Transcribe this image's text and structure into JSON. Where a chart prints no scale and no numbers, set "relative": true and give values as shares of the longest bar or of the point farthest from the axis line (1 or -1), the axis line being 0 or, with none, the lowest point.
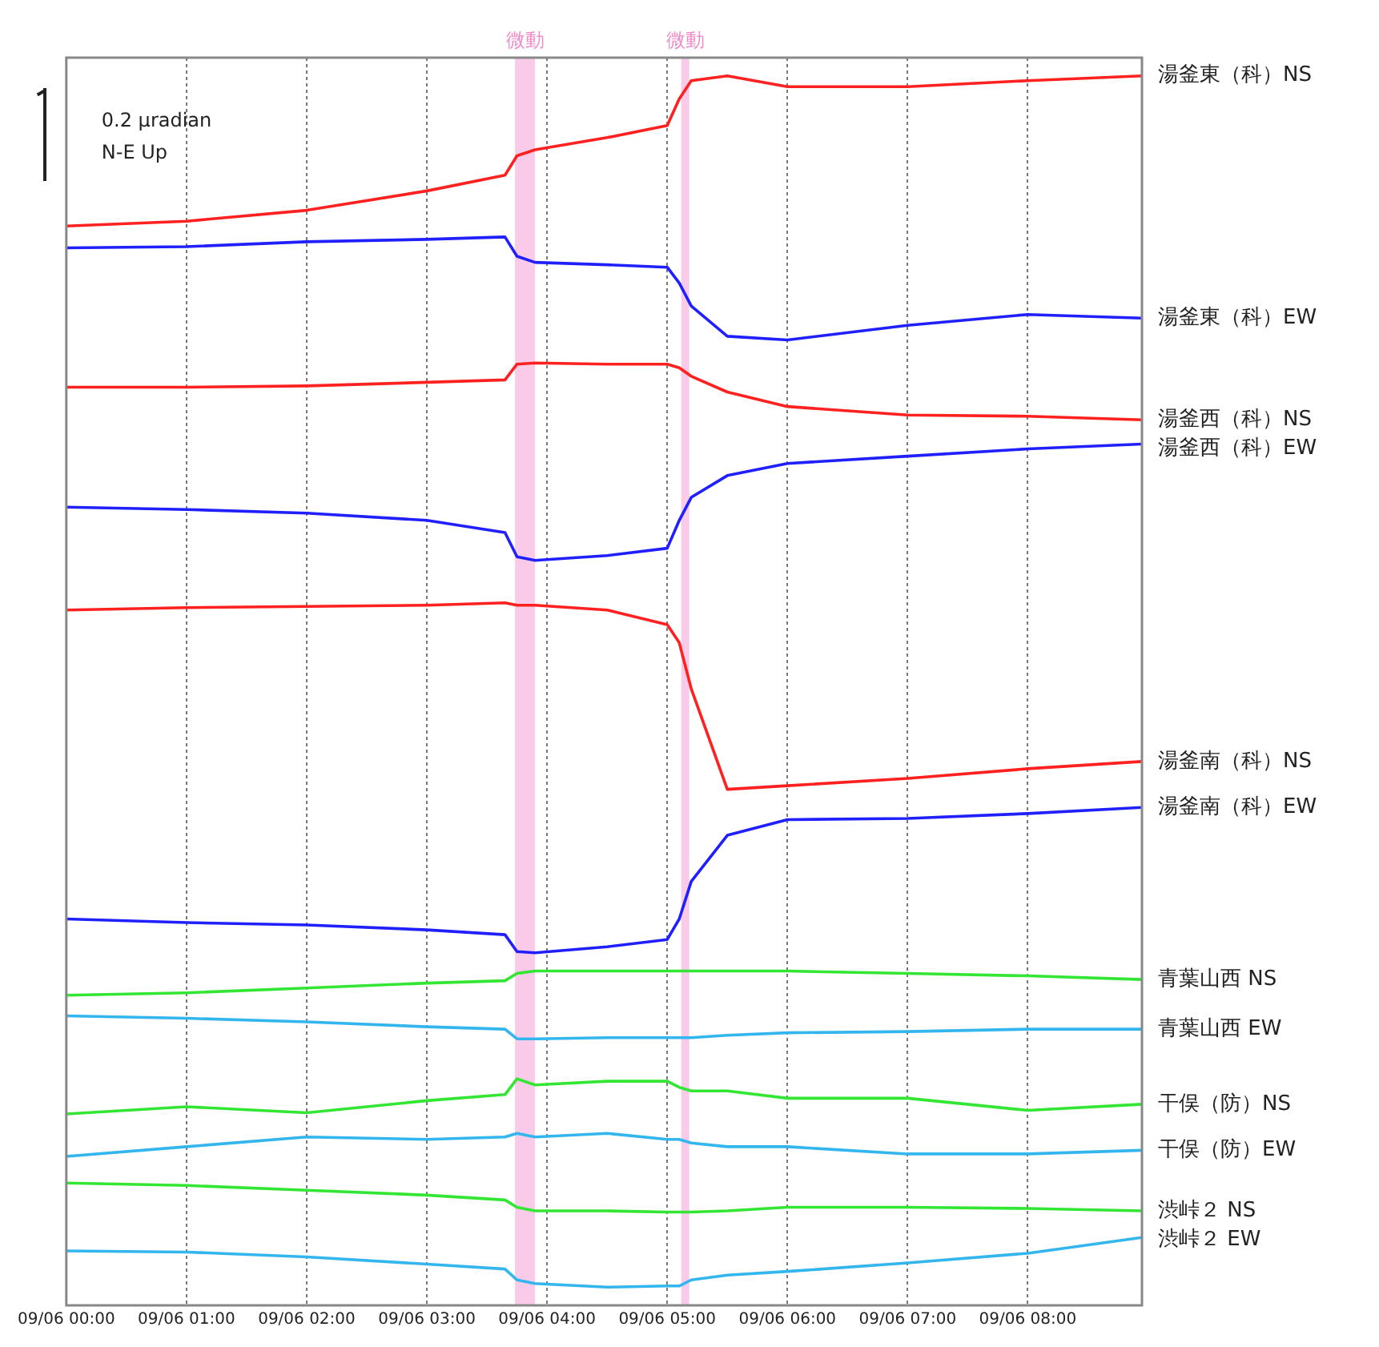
{
  "chart_data": {
    "type": "line",
    "relative": true,
    "annotations": [
      "0.2 μradian",
      "N-E Up"
    ],
    "x": [
      "--09-06T00:00",
      "--09-06T01:00",
      "--09-06T02:00",
      "--09-06T03:00",
      "--09-06T03:39",
      "--09-06T03:45",
      "--09-06T03:54",
      "--09-06T04:30",
      "--09-06T05:00",
      "--09-06T05:06",
      "--09-06T05:12",
      "--09-06T05:30",
      "--09-06T06:00",
      "--09-06T07:00",
      "--09-06T08:00",
      "--09-06T08:57"
    ],
    "xlim": [
      "--09-06T00:00",
      "--09-06T08:57"
    ],
    "xticks": [
      {
        "value": "--09-06T00:00",
        "label": "09/06 00:00"
      },
      {
        "value": "--09-06T01:00",
        "label": "09/06 01:00"
      },
      {
        "value": "--09-06T02:00",
        "label": "09/06 02:00"
      },
      {
        "value": "--09-06T03:00",
        "label": "09/06 03:00"
      },
      {
        "value": "--09-06T04:00",
        "label": "09/06 04:00"
      },
      {
        "value": "--09-06T05:00",
        "label": "09/06 05:00"
      },
      {
        "value": "--09-06T06:00",
        "label": "09/06 06:00"
      },
      {
        "value": "--09-06T07:00",
        "label": "09/06 07:00"
      },
      {
        "value": "--09-06T08:00",
        "label": "09/06 08:00"
      }
    ],
    "grid": "x",
    "legend": false,
    "marker": "none",
    "line_style": "solid",
    "bands": [
      {
        "axis": "x",
        "from": "--09-06T03:44",
        "to": "--09-06T03:54",
        "label": "微動",
        "color": "#f9cbe9"
      },
      {
        "axis": "x",
        "from": "--09-06T05:07",
        "to": "--09-06T05:11",
        "label": "微動",
        "color": "#f9cbe9"
      }
    ],
    "series": [
      {
        "name": "湯釜東（科）NS",
        "color": "#ff2020",
        "values": [
          0.876,
          0.88,
          0.889,
          0.905,
          0.918,
          0.934,
          0.939,
          0.949,
          0.959,
          0.981,
          0.996,
          1,
          0.991,
          0.991,
          0.996,
          1
        ]
      },
      {
        "name": "湯釜東（科）EW",
        "color": "#2020ff",
        "values": [
          0.858,
          0.859,
          0.863,
          0.865,
          0.867,
          0.851,
          0.846,
          0.844,
          0.842,
          0.829,
          0.81,
          0.785,
          0.782,
          0.794,
          0.803,
          0.8
        ]
      },
      {
        "name": "湯釜西（科）NS",
        "color": "#ff2020",
        "values": [
          0.743,
          0.743,
          0.744,
          0.747,
          0.749,
          0.762,
          0.763,
          0.762,
          0.762,
          0.759,
          0.752,
          0.739,
          0.727,
          0.72,
          0.719,
          0.716
        ]
      },
      {
        "name": "湯釜西（科）EW",
        "color": "#2020ff",
        "values": [
          0.644,
          0.642,
          0.639,
          0.633,
          0.623,
          0.603,
          0.6,
          0.604,
          0.61,
          0.633,
          0.652,
          0.67,
          0.68,
          0.686,
          0.692,
          0.696
        ]
      },
      {
        "name": "湯釜南（科）NS",
        "color": "#ff2020",
        "values": [
          0.559,
          0.561,
          0.562,
          0.563,
          0.565,
          0.563,
          0.563,
          0.559,
          0.547,
          0.532,
          0.494,
          0.411,
          0.414,
          0.42,
          0.428,
          0.434
        ]
      },
      {
        "name": "湯釜南（科）EW",
        "color": "#2020ff",
        "values": [
          0.304,
          0.301,
          0.299,
          0.295,
          0.291,
          0.277,
          0.276,
          0.281,
          0.287,
          0.304,
          0.335,
          0.373,
          0.386,
          0.387,
          0.391,
          0.396
        ]
      },
      {
        "name": "青葉山西 NS",
        "color": "#33e633",
        "values": [
          0.241,
          0.243,
          0.247,
          0.251,
          0.253,
          0.259,
          0.261,
          0.261,
          0.261,
          0.261,
          0.261,
          0.261,
          0.261,
          0.259,
          0.257,
          0.254
        ]
      },
      {
        "name": "青葉山西 EW",
        "color": "#33b5ee",
        "values": [
          0.224,
          0.222,
          0.219,
          0.215,
          0.213,
          0.205,
          0.205,
          0.206,
          0.206,
          0.206,
          0.206,
          0.208,
          0.21,
          0.211,
          0.213,
          0.213
        ]
      },
      {
        "name": "干俣（防）NS",
        "color": "#33e633",
        "values": [
          0.143,
          0.149,
          0.144,
          0.154,
          0.159,
          0.172,
          0.167,
          0.17,
          0.17,
          0.165,
          0.162,
          0.162,
          0.156,
          0.156,
          0.146,
          0.151
        ]
      },
      {
        "name": "干俣（防）EW",
        "color": "#33b5ee",
        "values": [
          0.108,
          0.116,
          0.124,
          0.122,
          0.124,
          0.127,
          0.124,
          0.127,
          0.122,
          0.122,
          0.119,
          0.116,
          0.116,
          0.11,
          0.11,
          0.113
        ]
      },
      {
        "name": "渋峠２ NS",
        "color": "#33e633",
        "values": [
          0.086,
          0.084,
          0.08,
          0.076,
          0.072,
          0.066,
          0.063,
          0.063,
          0.062,
          0.062,
          0.062,
          0.063,
          0.066,
          0.066,
          0.065,
          0.063
        ]
      },
      {
        "name": "渋峠２ EW",
        "color": "#33b5ee",
        "values": [
          0.03,
          0.029,
          0.025,
          0.019,
          0.015,
          0.006,
          0.003,
          0,
          0.001,
          0.001,
          0.006,
          0.01,
          0.013,
          0.02,
          0.028,
          0.041
        ]
      }
    ]
  }
}
